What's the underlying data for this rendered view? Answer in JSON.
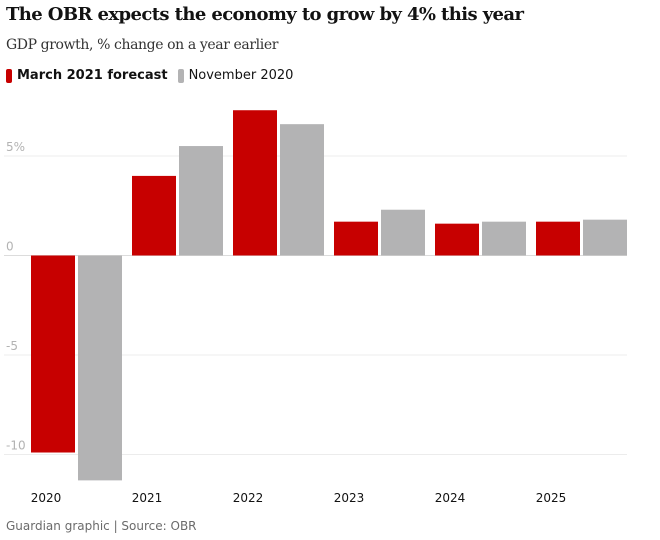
{
  "chart_data": {
    "type": "bar",
    "title": "The OBR expects the economy to grow by 4% this year",
    "subtitle": "GDP growth, % change on a year earlier",
    "categories": [
      "2020",
      "2021",
      "2022",
      "2023",
      "2024",
      "2025"
    ],
    "series": [
      {
        "name": "March 2021 forecast",
        "color": "#c70000",
        "values": [
          -9.9,
          4.0,
          7.3,
          1.7,
          1.6,
          1.7
        ]
      },
      {
        "name": "November 2020",
        "color": "#b3b3b4",
        "values": [
          -11.3,
          5.5,
          6.6,
          2.3,
          1.7,
          1.8
        ]
      }
    ],
    "y_ticks": [
      5,
      0,
      -5,
      -10
    ],
    "y_tick_labels": [
      "5%",
      "0",
      "-5",
      "-10"
    ],
    "ylim": [
      -11.3,
      7.3
    ],
    "grid": true,
    "legend_position": "top-left",
    "source": "Guardian graphic | Source: OBR"
  }
}
